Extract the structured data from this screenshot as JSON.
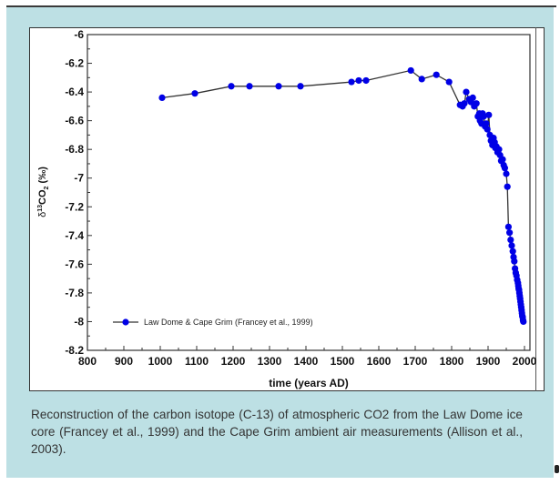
{
  "chart_data": {
    "type": "line",
    "title": "",
    "xlabel": "time (years AD)",
    "ylabel_main": "δ",
    "ylabel_sup": "13",
    "ylabel_co": "CO",
    "ylabel_sub": "2",
    "ylabel_unit": " (‰)",
    "xlim": [
      800,
      2000
    ],
    "ylim": [
      -8.2,
      -6
    ],
    "x_ticks": [
      "800",
      "900",
      "1000",
      "1100",
      "1200",
      "1300",
      "1400",
      "1500",
      "1600",
      "1700",
      "1800",
      "1900",
      "2000"
    ],
    "x_tick_values": [
      800,
      900,
      1000,
      1100,
      1200,
      1300,
      1400,
      1500,
      1600,
      1700,
      1800,
      1900,
      2000
    ],
    "y_ticks": [
      "-6",
      "-6.2",
      "-6.4",
      "-6.6",
      "-6.8",
      "-7",
      "-7.2",
      "-7.4",
      "-7.6",
      "-7.8",
      "-8",
      "-8.2"
    ],
    "y_tick_values": [
      -6,
      -6.2,
      -6.4,
      -6.6,
      -6.8,
      -7,
      -7.2,
      -7.4,
      -7.6,
      -7.8,
      -8,
      -8.2
    ],
    "grid": false,
    "legend_position": "bottom-left",
    "series": [
      {
        "name": "Law Dome & Cape Grim (Francey et al., 1999)",
        "color": "#0000e6",
        "line_color": "#333333",
        "x": [
          1005,
          1095,
          1195,
          1245,
          1325,
          1385,
          1525,
          1545,
          1565,
          1688,
          1718,
          1758,
          1793,
          1823,
          1830,
          1835,
          1840,
          1848,
          1853,
          1858,
          1862,
          1868,
          1872,
          1876,
          1878,
          1882,
          1885,
          1888,
          1892,
          1895,
          1898,
          1902,
          1905,
          1908,
          1912,
          1915,
          1918,
          1920,
          1923,
          1926,
          1930,
          1933,
          1936,
          1940,
          1943,
          1946,
          1950,
          1953,
          1956,
          1959,
          1962,
          1965,
          1968,
          1970,
          1972,
          1974,
          1976,
          1978,
          1980,
          1982,
          1983,
          1984,
          1985,
          1986,
          1987,
          1988,
          1989,
          1990,
          1991,
          1992,
          1993,
          1994,
          1995,
          1996,
          1997
        ],
        "y": [
          -6.44,
          -6.41,
          -6.36,
          -6.36,
          -6.36,
          -6.36,
          -6.33,
          -6.32,
          -6.32,
          -6.25,
          -6.31,
          -6.28,
          -6.33,
          -6.49,
          -6.5,
          -6.48,
          -6.4,
          -6.45,
          -6.47,
          -6.44,
          -6.5,
          -6.48,
          -6.57,
          -6.55,
          -6.6,
          -6.62,
          -6.55,
          -6.57,
          -6.64,
          -6.62,
          -6.66,
          -6.56,
          -6.7,
          -6.74,
          -6.77,
          -6.72,
          -6.75,
          -6.79,
          -6.78,
          -6.82,
          -6.8,
          -6.84,
          -6.88,
          -6.87,
          -6.91,
          -6.93,
          -6.97,
          -7.06,
          -7.34,
          -7.38,
          -7.43,
          -7.47,
          -7.51,
          -7.55,
          -7.58,
          -7.63,
          -7.66,
          -7.68,
          -7.71,
          -7.73,
          -7.75,
          -7.77,
          -7.78,
          -7.8,
          -7.82,
          -7.84,
          -7.86,
          -7.88,
          -7.9,
          -7.92,
          -7.94,
          -7.96,
          -7.97,
          -7.99,
          -8.0
        ]
      }
    ]
  },
  "legend": {
    "label": "Law Dome & Cape Grim (Francey et al., 1999)"
  },
  "caption": "Reconstruction of the carbon isotope (C-13) of atmospheric CO2 from the Law Dome ice core (Francey et al., 1999) and the Cape Grim ambient air measurements (Allison et al., 2003).",
  "colors": {
    "panel": "#bde0e4",
    "marker": "#0000e6",
    "line": "#333333"
  }
}
